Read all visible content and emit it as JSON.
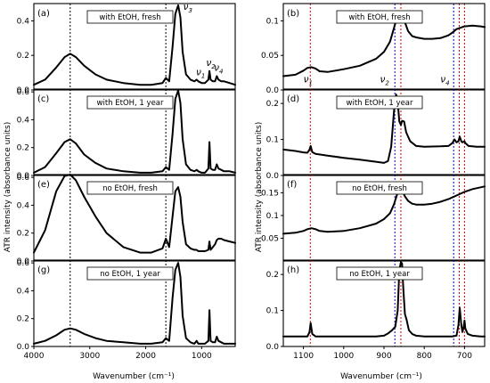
{
  "figure": {
    "left_column": {
      "xlabel": "Wavenumber (cm⁻¹)",
      "ylabel": "ATR intensity (absorbance units)",
      "x_ticks": [
        "4000",
        "3000",
        "2000",
        "1000"
      ],
      "modes": [
        {
          "label": "ν₃",
          "sub": "3"
        },
        {
          "label": "ν₂",
          "sub": "2"
        },
        {
          "label": "ν₁",
          "sub": "1"
        },
        {
          "label": "ν₄",
          "sub": "4"
        }
      ]
    },
    "right_column": {
      "xlabel": "Wavenumber (cm⁻¹)",
      "ylabel": "ATR intensity (absorbance units)",
      "x_ticks": [
        "1100",
        "1000",
        "900",
        "800",
        "700"
      ],
      "modes": [
        {
          "label": "ν₁"
        },
        {
          "label": "ν₂"
        },
        {
          "label": "ν₄"
        }
      ]
    }
  },
  "chart_data": [
    {
      "type": "line",
      "panel": "(a)",
      "label": "with EtOH, fresh",
      "xlim": [
        4000,
        400
      ],
      "ylim": [
        0,
        0.5
      ],
      "yticks": [
        0.0,
        0.2,
        0.4
      ],
      "guides": [
        {
          "x": 3350,
          "color": "#000000"
        },
        {
          "x": 1640,
          "color": "#000000"
        }
      ],
      "x": [
        4000,
        3800,
        3600,
        3450,
        3350,
        3250,
        3100,
        2900,
        2700,
        2400,
        2100,
        1900,
        1700,
        1640,
        1580,
        1520,
        1470,
        1420,
        1380,
        1340,
        1280,
        1200,
        1130,
        1090,
        1060,
        1000,
        940,
        880,
        860,
        840,
        800,
        760,
        730,
        700,
        650,
        600,
        500,
        400
      ],
      "y": [
        0.03,
        0.06,
        0.13,
        0.19,
        0.21,
        0.19,
        0.14,
        0.09,
        0.06,
        0.04,
        0.03,
        0.03,
        0.04,
        0.07,
        0.05,
        0.25,
        0.44,
        0.49,
        0.42,
        0.22,
        0.09,
        0.06,
        0.05,
        0.06,
        0.05,
        0.04,
        0.04,
        0.06,
        0.11,
        0.06,
        0.05,
        0.05,
        0.08,
        0.06,
        0.05,
        0.05,
        0.04,
        0.03
      ]
    },
    {
      "type": "line",
      "panel": "(c)",
      "label": "with EtOH, 1 year",
      "xlim": [
        4000,
        400
      ],
      "ylim": [
        0,
        0.62
      ],
      "yticks": [
        0.0,
        0.2,
        0.4,
        0.6
      ],
      "guides": [
        {
          "x": 3350,
          "color": "#000000"
        },
        {
          "x": 1640,
          "color": "#000000"
        }
      ],
      "x": [
        4000,
        3800,
        3600,
        3450,
        3350,
        3250,
        3100,
        2900,
        2700,
        2400,
        2100,
        1900,
        1700,
        1640,
        1580,
        1520,
        1470,
        1420,
        1380,
        1340,
        1280,
        1200,
        1130,
        1090,
        1060,
        1000,
        940,
        880,
        860,
        840,
        800,
        760,
        730,
        700,
        650,
        600,
        500,
        400
      ],
      "y": [
        0.02,
        0.06,
        0.16,
        0.24,
        0.26,
        0.23,
        0.15,
        0.09,
        0.05,
        0.03,
        0.02,
        0.02,
        0.03,
        0.06,
        0.04,
        0.3,
        0.55,
        0.61,
        0.52,
        0.26,
        0.08,
        0.04,
        0.03,
        0.04,
        0.03,
        0.02,
        0.02,
        0.05,
        0.24,
        0.05,
        0.04,
        0.04,
        0.08,
        0.05,
        0.04,
        0.03,
        0.03,
        0.02
      ]
    },
    {
      "type": "line",
      "panel": "(e)",
      "label": "no EtOH, fresh",
      "xlim": [
        4000,
        400
      ],
      "ylim": [
        0,
        0.62
      ],
      "yticks": [
        0.0,
        0.2,
        0.4,
        0.6
      ],
      "guides": [
        {
          "x": 3350,
          "color": "#000000"
        },
        {
          "x": 1640,
          "color": "#000000"
        }
      ],
      "x": [
        4000,
        3800,
        3600,
        3450,
        3350,
        3250,
        3100,
        2900,
        2700,
        2400,
        2100,
        1900,
        1700,
        1640,
        1580,
        1520,
        1470,
        1420,
        1380,
        1340,
        1280,
        1200,
        1130,
        1090,
        1060,
        1000,
        940,
        880,
        860,
        840,
        800,
        760,
        730,
        700,
        650,
        600,
        500,
        400
      ],
      "y": [
        0.06,
        0.22,
        0.5,
        0.61,
        0.62,
        0.58,
        0.46,
        0.32,
        0.2,
        0.1,
        0.06,
        0.06,
        0.09,
        0.16,
        0.1,
        0.32,
        0.5,
        0.53,
        0.46,
        0.28,
        0.12,
        0.09,
        0.08,
        0.08,
        0.07,
        0.07,
        0.07,
        0.08,
        0.14,
        0.08,
        0.1,
        0.12,
        0.15,
        0.16,
        0.16,
        0.15,
        0.14,
        0.13
      ]
    },
    {
      "type": "line",
      "panel": "(g)",
      "label": "no EtOH, 1 year",
      "xlim": [
        4000,
        400
      ],
      "ylim": [
        0,
        0.62
      ],
      "yticks": [
        0.0,
        0.2,
        0.4,
        0.6
      ],
      "guides": [
        {
          "x": 3350,
          "color": "#000000"
        },
        {
          "x": 1640,
          "color": "#000000"
        }
      ],
      "x": [
        4000,
        3800,
        3600,
        3450,
        3350,
        3250,
        3100,
        2900,
        2700,
        2400,
        2100,
        1900,
        1700,
        1640,
        1580,
        1520,
        1470,
        1420,
        1380,
        1340,
        1280,
        1200,
        1130,
        1090,
        1060,
        1000,
        940,
        880,
        860,
        840,
        800,
        760,
        730,
        700,
        650,
        600,
        500,
        400
      ],
      "y": [
        0.02,
        0.04,
        0.08,
        0.12,
        0.13,
        0.12,
        0.09,
        0.06,
        0.04,
        0.03,
        0.02,
        0.02,
        0.03,
        0.06,
        0.04,
        0.35,
        0.55,
        0.6,
        0.5,
        0.22,
        0.06,
        0.03,
        0.02,
        0.04,
        0.02,
        0.02,
        0.02,
        0.04,
        0.26,
        0.04,
        0.03,
        0.03,
        0.07,
        0.04,
        0.03,
        0.02,
        0.02,
        0.02
      ]
    },
    {
      "type": "line",
      "panel": "(b)",
      "label": "with EtOH, fresh",
      "xlim": [
        1150,
        650
      ],
      "ylim": [
        0,
        0.125
      ],
      "yticks": [
        0.0,
        0.05,
        0.1
      ],
      "guides": [
        {
          "x": 1083,
          "color": "#dd0000"
        },
        {
          "x": 873,
          "color": "#0000cc"
        },
        {
          "x": 858,
          "color": "#dd0000"
        },
        {
          "x": 727,
          "color": "#0000cc"
        },
        {
          "x": 713,
          "color": "#dd0000"
        },
        {
          "x": 700,
          "color": "#dd0000"
        }
      ],
      "x": [
        1150,
        1120,
        1100,
        1090,
        1080,
        1070,
        1060,
        1040,
        1000,
        960,
        920,
        900,
        885,
        875,
        868,
        862,
        855,
        848,
        840,
        830,
        820,
        800,
        780,
        760,
        740,
        730,
        720,
        700,
        680,
        660,
        650
      ],
      "y": [
        0.02,
        0.022,
        0.028,
        0.032,
        0.033,
        0.031,
        0.027,
        0.026,
        0.03,
        0.035,
        0.045,
        0.055,
        0.07,
        0.09,
        0.105,
        0.113,
        0.112,
        0.098,
        0.085,
        0.078,
        0.076,
        0.074,
        0.074,
        0.075,
        0.079,
        0.083,
        0.088,
        0.092,
        0.093,
        0.092,
        0.091
      ]
    },
    {
      "type": "line",
      "panel": "(d)",
      "label": "with EtOH, 1 year",
      "xlim": [
        1150,
        650
      ],
      "ylim": [
        0,
        0.24
      ],
      "yticks": [
        0.0,
        0.1,
        0.2
      ],
      "guides": [
        {
          "x": 1083,
          "color": "#dd0000"
        },
        {
          "x": 873,
          "color": "#0000cc"
        },
        {
          "x": 858,
          "color": "#dd0000"
        },
        {
          "x": 727,
          "color": "#0000cc"
        },
        {
          "x": 713,
          "color": "#dd0000"
        },
        {
          "x": 700,
          "color": "#dd0000"
        }
      ],
      "x": [
        1150,
        1120,
        1100,
        1090,
        1085,
        1082,
        1078,
        1070,
        1040,
        1000,
        960,
        920,
        900,
        890,
        882,
        875,
        870,
        866,
        862,
        858,
        855,
        850,
        845,
        835,
        820,
        800,
        760,
        740,
        730,
        725,
        720,
        715,
        712,
        708,
        705,
        700,
        698,
        690,
        670,
        650
      ],
      "y": [
        0.072,
        0.068,
        0.064,
        0.063,
        0.072,
        0.082,
        0.065,
        0.06,
        0.055,
        0.049,
        0.044,
        0.038,
        0.035,
        0.04,
        0.08,
        0.18,
        0.225,
        0.205,
        0.15,
        0.14,
        0.152,
        0.15,
        0.12,
        0.095,
        0.082,
        0.08,
        0.081,
        0.082,
        0.09,
        0.1,
        0.092,
        0.095,
        0.108,
        0.095,
        0.092,
        0.095,
        0.09,
        0.082,
        0.08,
        0.08
      ]
    },
    {
      "type": "line",
      "panel": "(f)",
      "label": "no EtOH, fresh",
      "xlim": [
        1150,
        650
      ],
      "ylim": [
        0,
        0.19
      ],
      "yticks": [
        0.05,
        0.1,
        0.15
      ],
      "guides": [
        {
          "x": 1083,
          "color": "#dd0000"
        },
        {
          "x": 873,
          "color": "#0000cc"
        },
        {
          "x": 858,
          "color": "#dd0000"
        },
        {
          "x": 727,
          "color": "#0000cc"
        },
        {
          "x": 713,
          "color": "#dd0000"
        },
        {
          "x": 700,
          "color": "#dd0000"
        }
      ],
      "x": [
        1150,
        1120,
        1100,
        1090,
        1080,
        1070,
        1060,
        1040,
        1000,
        960,
        920,
        900,
        885,
        875,
        868,
        862,
        855,
        848,
        840,
        830,
        820,
        800,
        780,
        760,
        740,
        720,
        700,
        680,
        660,
        650
      ],
      "y": [
        0.06,
        0.062,
        0.066,
        0.07,
        0.072,
        0.07,
        0.066,
        0.064,
        0.066,
        0.072,
        0.082,
        0.092,
        0.105,
        0.125,
        0.145,
        0.158,
        0.156,
        0.142,
        0.132,
        0.126,
        0.124,
        0.124,
        0.126,
        0.13,
        0.136,
        0.144,
        0.152,
        0.158,
        0.162,
        0.164
      ]
    },
    {
      "type": "line",
      "panel": "(h)",
      "label": "no EtOH, 1 year",
      "xlim": [
        1150,
        650
      ],
      "ylim": [
        0,
        0.24
      ],
      "yticks": [
        0.0,
        0.1,
        0.2
      ],
      "guides": [
        {
          "x": 1083,
          "color": "#dd0000"
        },
        {
          "x": 873,
          "color": "#0000cc"
        },
        {
          "x": 858,
          "color": "#dd0000"
        },
        {
          "x": 727,
          "color": "#0000cc"
        },
        {
          "x": 713,
          "color": "#dd0000"
        },
        {
          "x": 700,
          "color": "#dd0000"
        }
      ],
      "x": [
        1150,
        1120,
        1100,
        1090,
        1085,
        1082,
        1078,
        1070,
        1040,
        1000,
        960,
        920,
        900,
        890,
        880,
        872,
        866,
        862,
        858,
        855,
        852,
        848,
        844,
        838,
        830,
        820,
        800,
        760,
        730,
        720,
        715,
        712,
        708,
        705,
        702,
        700,
        698,
        692,
        680,
        660,
        650
      ],
      "y": [
        0.028,
        0.028,
        0.028,
        0.028,
        0.04,
        0.065,
        0.035,
        0.028,
        0.028,
        0.028,
        0.028,
        0.028,
        0.03,
        0.036,
        0.045,
        0.055,
        0.1,
        0.21,
        0.235,
        0.23,
        0.16,
        0.09,
        0.075,
        0.045,
        0.035,
        0.03,
        0.028,
        0.028,
        0.028,
        0.03,
        0.06,
        0.108,
        0.06,
        0.04,
        0.055,
        0.072,
        0.05,
        0.035,
        0.03,
        0.028,
        0.028
      ]
    }
  ],
  "mode_labels": {
    "a": [
      {
        "text": "ν",
        "sub": "3",
        "x": 1400
      },
      {
        "text": "ν",
        "sub": "2",
        "x": 870
      },
      {
        "text": "ν",
        "sub": "1",
        "x": 1080
      },
      {
        "text": "ν",
        "sub": "4",
        "x": 720
      }
    ],
    "b": [
      {
        "text": "ν",
        "sub": "1",
        "x": 1083
      },
      {
        "text": "ν",
        "sub": "2",
        "x": 900
      },
      {
        "text": "ν",
        "sub": "4",
        "x": 745
      }
    ]
  }
}
